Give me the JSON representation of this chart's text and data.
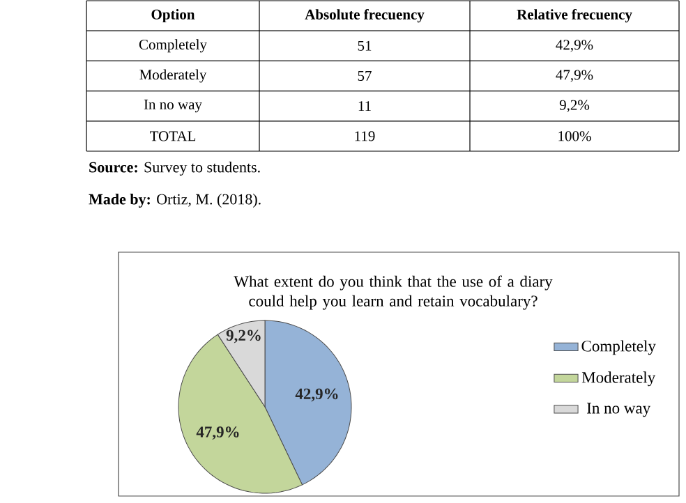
{
  "chart_data": {
    "type": "pie",
    "title": "What extent do you think that the use of a diary could help you learn and retain vocabulary?",
    "categories": [
      "Completely",
      "Moderately",
      "In no way"
    ],
    "values": [
      42.9,
      47.9,
      9.2
    ],
    "value_labels": [
      "42,9%",
      "47,9%",
      "9,2%"
    ],
    "colors": [
      "#95b3d7",
      "#c3d69b",
      "#d9d9d9"
    ],
    "legend": "right",
    "annotations": [
      "Option",
      "Absolute frecuency",
      "Relative frecuency",
      "Completely",
      "51",
      "42,9%",
      "Moderately",
      "57",
      "47,9%",
      "In no way",
      "11",
      "9,2%",
      "TOTAL",
      "119",
      "100%",
      "**Source:** Survey to students.",
      "**Made by:** Ortiz, M. (2018)."
    ]
  }
}
